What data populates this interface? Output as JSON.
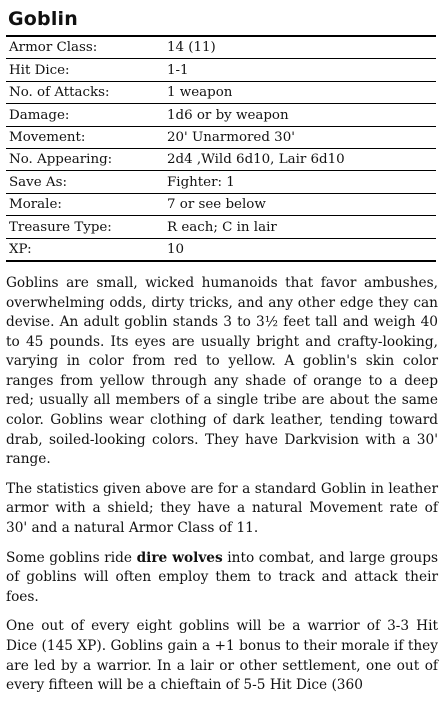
{
  "monster": {
    "name": "Goblin",
    "stats": [
      {
        "label": "Armor Class:",
        "value": "14 (11)"
      },
      {
        "label": "Hit Dice:",
        "value": "1-1"
      },
      {
        "label": "No. of Attacks:",
        "value": "1 weapon"
      },
      {
        "label": "Damage:",
        "value": "1d6 or by weapon"
      },
      {
        "label": "Movement:",
        "value": "20' Unarmored 30'"
      },
      {
        "label": "No. Appearing:",
        "value": "2d4 ,Wild 6d10, Lair 6d10"
      },
      {
        "label": "Save As:",
        "value": "Fighter: 1"
      },
      {
        "label": "Morale:",
        "value": "7 or see below"
      },
      {
        "label": "Treasure Type:",
        "value": "R each; C in lair"
      },
      {
        "label": "XP:",
        "value": "10"
      }
    ],
    "paragraphs": [
      {
        "p1": "Goblins are small, wicked humanoids that favor ambushes, overwhelming odds, dirty tricks, and any other edge they can devise. An adult goblin stands 3 to 3½ feet tall and weigh 40 to 45 pounds. Its eyes are usually bright and crafty-looking, varying in color from red to yellow. A goblin's skin color ranges from yellow through any shade of orange to a deep red; usually all members of a single tribe are about the same color. Goblins wear clothing of dark leather, tending toward drab, soiled-looking colors. They have Darkvision with a 30' range."
      },
      {
        "p2": "The statistics given above are for a standard Goblin in leather armor with a shield; they have a natural Movement rate of 30' and a natural Armor Class of 11."
      },
      {
        "p3a": "Some goblins ride ",
        "p3b": "dire wolves",
        "p3c": " into combat, and large groups of goblins will often employ them to track and attack their foes."
      },
      {
        "p4": "One out of every eight goblins will be a warrior of 3-3 Hit Dice (145 XP). Goblins gain a +1 bonus to their morale if they are led by a warrior. In a lair or other settlement, one out of every fifteen will be a chieftain of 5-5 Hit Dice (360"
      }
    ]
  }
}
